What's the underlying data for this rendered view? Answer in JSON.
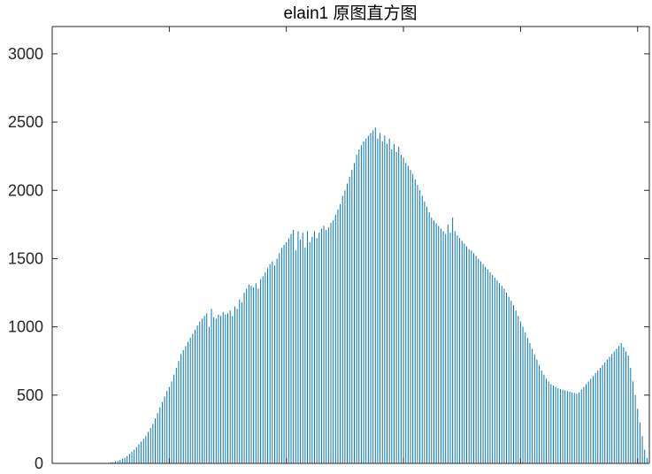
{
  "chart_data": {
    "type": "bar",
    "title": "elain1 原图直方图",
    "xlabel": "",
    "ylabel": "",
    "xlim": [
      0,
      255
    ],
    "ylim": [
      0,
      3200
    ],
    "yticks": [
      0,
      500,
      1000,
      1500,
      2000,
      2500,
      3000
    ],
    "ytick_labels": [
      "0",
      "500",
      "1000",
      "1500",
      "2000",
      "2500",
      "3000"
    ],
    "grid": false,
    "bar_color": "#0072BD",
    "x_start": 0,
    "values": [
      0,
      0,
      0,
      0,
      0,
      0,
      0,
      0,
      0,
      0,
      0,
      0,
      0,
      0,
      0,
      0,
      0,
      0,
      0,
      0,
      0,
      0,
      0,
      0,
      5,
      8,
      10,
      15,
      20,
      25,
      35,
      40,
      55,
      70,
      85,
      100,
      120,
      140,
      160,
      180,
      200,
      230,
      260,
      290,
      330,
      370,
      410,
      450,
      490,
      530,
      560,
      600,
      650,
      700,
      750,
      800,
      830,
      860,
      890,
      920,
      950,
      980,
      1010,
      1040,
      1060,
      1080,
      1100,
      1000,
      1130,
      1070,
      1060,
      1090,
      1080,
      1110,
      1090,
      1100,
      1120,
      1080,
      1150,
      1130,
      1200,
      1180,
      1250,
      1280,
      1310,
      1300,
      1290,
      1320,
      1280,
      1350,
      1370,
      1400,
      1430,
      1460,
      1480,
      1450,
      1500,
      1540,
      1580,
      1600,
      1620,
      1650,
      1680,
      1710,
      1560,
      1700,
      1640,
      1690,
      1580,
      1700,
      1620,
      1660,
      1700,
      1650,
      1690,
      1720,
      1740,
      1710,
      1730,
      1760,
      1780,
      1820,
      1860,
      1900,
      1960,
      2000,
      2050,
      2100,
      2150,
      2200,
      2260,
      2300,
      2330,
      2360,
      2380,
      2400,
      2420,
      2440,
      2460,
      2380,
      2420,
      2360,
      2400,
      2340,
      2380,
      2300,
      2340,
      2280,
      2320,
      2260,
      2240,
      2200,
      2180,
      2150,
      2120,
      2080,
      2040,
      2000,
      1960,
      1920,
      1880,
      1840,
      1800,
      1780,
      1760,
      1740,
      1720,
      1700,
      1680,
      1750,
      1690,
      1800,
      1700,
      1670,
      1650,
      1630,
      1610,
      1590,
      1570,
      1560,
      1540,
      1520,
      1500,
      1480,
      1460,
      1440,
      1420,
      1400,
      1380,
      1360,
      1340,
      1320,
      1300,
      1280,
      1250,
      1220,
      1190,
      1160,
      1120,
      1080,
      1040,
      1000,
      960,
      920,
      880,
      840,
      800,
      760,
      720,
      680,
      650,
      620,
      600,
      580,
      570,
      560,
      550,
      545,
      540,
      535,
      530,
      525,
      520,
      515,
      510,
      520,
      540,
      560,
      580,
      600,
      620,
      640,
      660,
      680,
      700,
      720,
      740,
      760,
      780,
      800,
      820,
      840,
      860,
      880,
      850,
      820,
      790,
      700,
      600,
      500,
      400,
      300,
      200,
      100,
      40,
      10
    ]
  }
}
